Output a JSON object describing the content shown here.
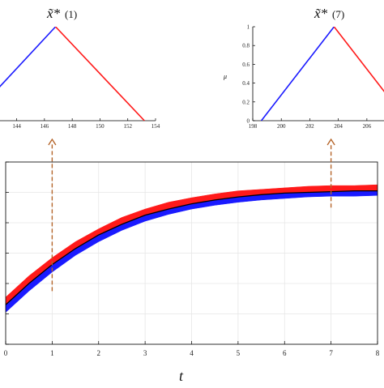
{
  "chart_data": [
    {
      "type": "line",
      "panel": "inset-left",
      "title": "x̃*(1)",
      "title_base": "x̃*",
      "title_sub": "(1)",
      "xlim": [
        142.8,
        154
      ],
      "ylim": [
        0,
        1
      ],
      "xticks": [
        144,
        146,
        148,
        150,
        152,
        154
      ],
      "xtick_labels": [
        "144",
        "146",
        "148",
        "150",
        "152",
        "154"
      ],
      "series": [
        {
          "color": "#1a1aff",
          "x": [
            140.5,
            146.8
          ],
          "y": [
            0,
            1
          ]
        },
        {
          "color": "#ff1a1a",
          "x": [
            146.8,
            153.2
          ],
          "y": [
            1,
            0
          ]
        }
      ]
    },
    {
      "type": "line",
      "panel": "inset-right",
      "title": "x̃*(7)",
      "title_base": "x̃*",
      "title_sub": "(7)",
      "ylabel": "μ",
      "xlim": [
        198,
        207.2
      ],
      "ylim": [
        0,
        1
      ],
      "xticks": [
        198,
        200,
        202,
        204,
        206
      ],
      "xtick_labels": [
        "198",
        "200",
        "202",
        "204",
        "206"
      ],
      "yticks": [
        0,
        0.2,
        0.4,
        0.6,
        0.8,
        1
      ],
      "ytick_labels": [
        "0",
        "0.2",
        "0.4",
        "0.6",
        "0.8",
        "1"
      ],
      "series": [
        {
          "color": "#1a1aff",
          "x": [
            198.6,
            203.7
          ],
          "y": [
            0,
            1
          ]
        },
        {
          "color": "#ff1a1a",
          "x": [
            203.7,
            208.8
          ],
          "y": [
            1,
            0
          ]
        }
      ]
    },
    {
      "type": "area",
      "panel": "main",
      "xlabel": "t",
      "xlim": [
        0,
        8
      ],
      "xticks": [
        0,
        1,
        2,
        3,
        4,
        5,
        6,
        7,
        8
      ],
      "xtick_labels": [
        "0",
        "1",
        "2",
        "3",
        "4",
        "5",
        "6",
        "7",
        "8"
      ],
      "ylim": [
        0,
        240
      ],
      "yticks": [
        0,
        40,
        80,
        120,
        160,
        200,
        240
      ],
      "grid": true,
      "bands": {
        "lower_color": "#1a1aff",
        "upper_color": "#ff1a1a",
        "center_color": "#000000",
        "t": [
          0,
          0.5,
          1,
          1.5,
          2,
          2.5,
          3,
          3.5,
          4,
          4.5,
          5,
          5.5,
          6,
          6.5,
          7,
          7.5,
          8
        ],
        "upper": [
          62,
          90,
          114,
          135,
          152,
          167,
          178,
          187,
          193,
          198,
          202,
          204,
          206,
          208,
          209,
          209,
          210
        ],
        "center": [
          52,
          80,
          105,
          126,
          144,
          158,
          170,
          178,
          185,
          190,
          194,
          197,
          199,
          200,
          201,
          202,
          202
        ],
        "lower": [
          42,
          70,
          95,
          117,
          135,
          150,
          162,
          171,
          178,
          183,
          187,
          190,
          192,
          194,
          195,
          195,
          196
        ]
      },
      "annotations": [
        {
          "x": 1,
          "from_y": 70,
          "to_y": 240,
          "color": "#b5652a",
          "style": "dashed-arrow"
        },
        {
          "x": 7,
          "from_y": 180,
          "to_y": 240,
          "color": "#b5652a",
          "style": "dashed-arrow"
        }
      ]
    }
  ]
}
